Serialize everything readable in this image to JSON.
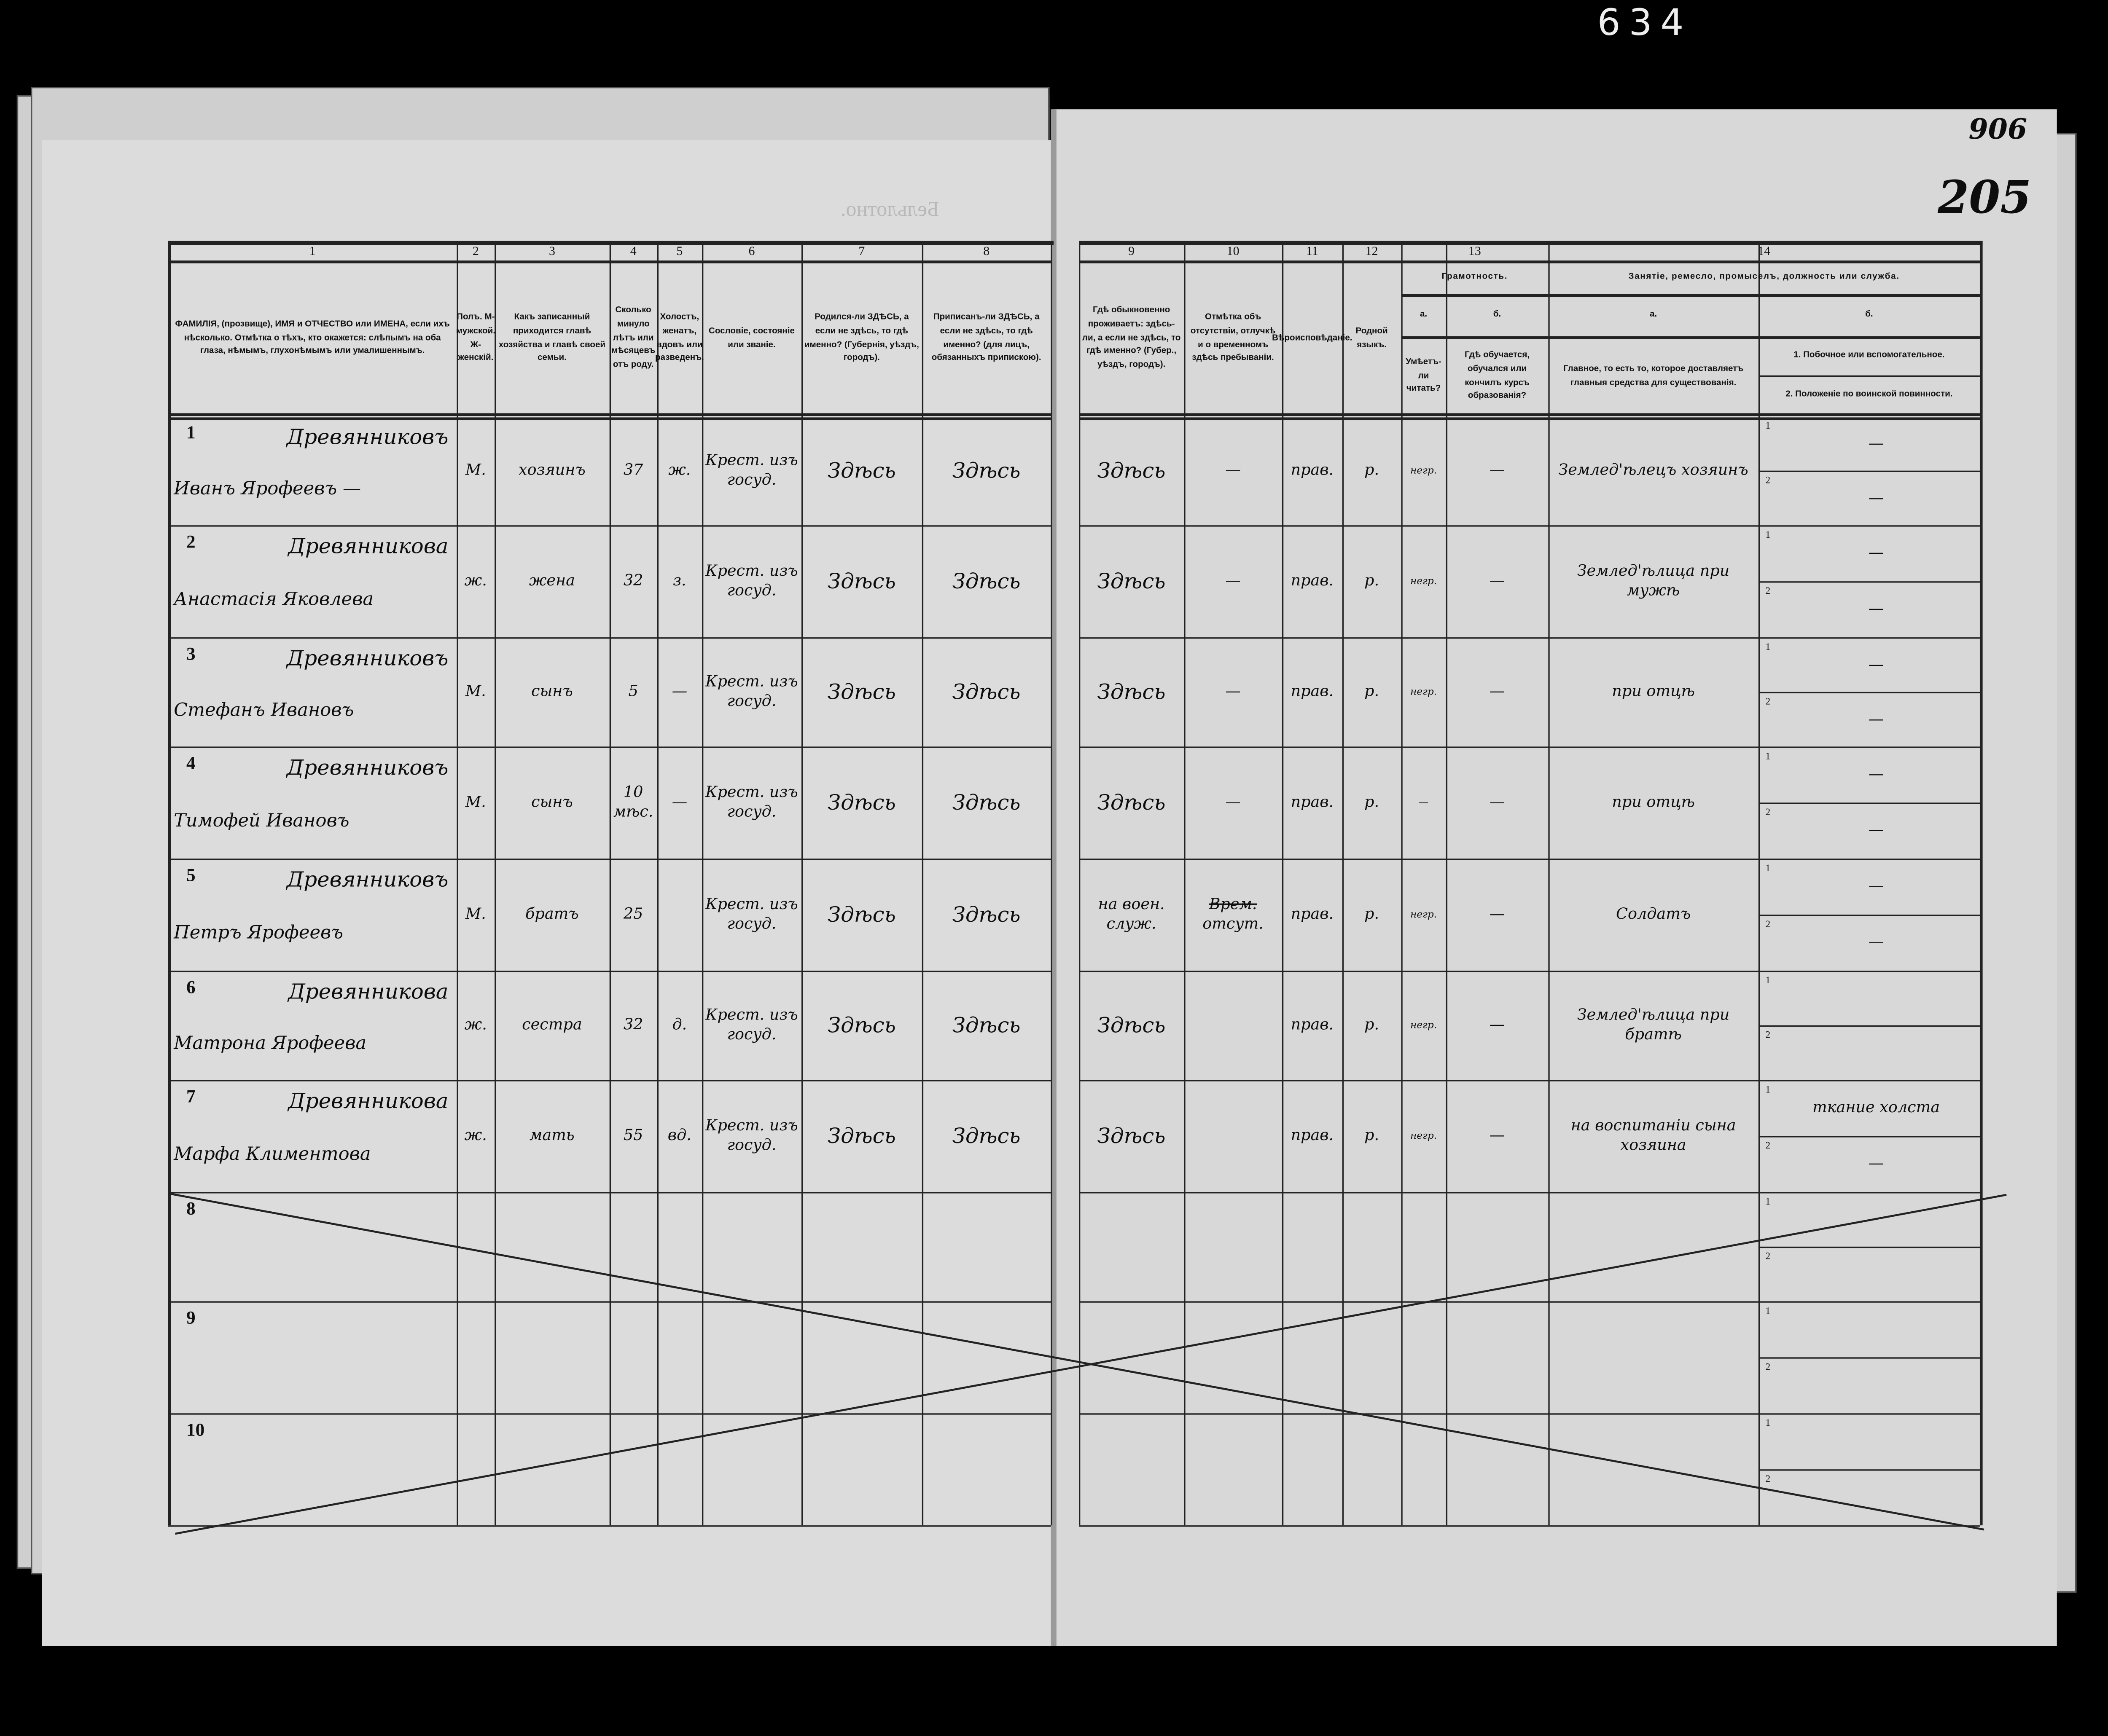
{
  "archive_page_number": "634",
  "sheet_numbers": {
    "stamped": "205",
    "stamped_old": "906"
  },
  "watermark_text": "Бельлотно.",
  "header": {
    "col_numbers": [
      "1",
      "2",
      "3",
      "4",
      "5",
      "6",
      "7",
      "8",
      "9",
      "10",
      "11",
      "12",
      "13",
      "14"
    ],
    "col1": "ФАМИЛІЯ, (прозвище), ИМЯ и ОТЧЕСТВО или ИМЕНА, если ихъ нѣсколько. Отмѣтка о тѣхъ, кто окажется: слѣпымъ на оба глаза, нѣмымъ, глухонѣмымъ или умалишеннымъ.",
    "col2": "Полъ. М-мужской. Ж-женскій.",
    "col3": "Какъ записанный приходится главѣ хозяйства и главѣ своей семьи.",
    "col4": "Сколько минуло лѣтъ или мѣсяцевъ отъ роду.",
    "col5": "Холостъ, женатъ, вдовъ или разведенъ.",
    "col6": "Сословіе, состояніе или званіе.",
    "col7": "Родился-ли ЗДѢСЬ, а если не здѣсь, то гдѣ именно? (Губернія, уѣздъ, городъ).",
    "col8": "Приписанъ-ли ЗДѢСЬ, а если не здѣсь, то гдѣ именно? (для лицъ, обязанныхъ припискою).",
    "col9": "Гдѣ обыкновенно проживаетъ: здѣсь-ли, а если не здѣсь, то гдѣ именно? (Губер., уѣздъ, городъ).",
    "col10": "Отмѣтка объ отсутствіи, отлучкѣ и о временномъ здѣсь пребываніи.",
    "col11": "Вѣроисповѣданіе.",
    "col12": "Родной языкъ.",
    "col13_title": "Грамотность.",
    "col13a_letter": "а.",
    "col13a": "Умѣетъ-ли читать?",
    "col13b_letter": "б.",
    "col13b": "Гдѣ обучается, обучался или кончилъ курсъ образованія?",
    "col14_title": "Занятіе, ремесло, промыселъ, должность или служба.",
    "col14a_letter": "а.",
    "col14a": "Главное, то есть то, которое доставляетъ главныя средства для существованія.",
    "col14b_letter": "б.",
    "col14b_1": "1. Побочное или вспомогательное.",
    "col14b_2": "2. Положеніе по воинской повинности."
  },
  "rows": [
    {
      "n": "1",
      "surname": "Древянниковъ",
      "name": "Иванъ Ярофеевъ —",
      "sex": "М.",
      "relation": "хозяинъ",
      "age": "37",
      "marital": "ж.",
      "estate": "Крест. изъ госуд.",
      "born": "Здѣсь",
      "registered": "Здѣсь",
      "resides": "Здѣсь",
      "absence": "—",
      "religion": "прав.",
      "language": "р.",
      "literate": "негр.",
      "education": "—",
      "occupation": "Землед'ѣлецъ хозяинъ",
      "secondary_1": "—",
      "secondary_2": "—"
    },
    {
      "n": "2",
      "surname": "Древянникова",
      "name": "Анастасія Яковлева",
      "sex": "ж.",
      "relation": "жена",
      "age": "32",
      "marital": "з.",
      "estate": "Крест. изъ госуд.",
      "born": "Здѣсь",
      "registered": "Здѣсь",
      "resides": "Здѣсь",
      "absence": "—",
      "religion": "прав.",
      "language": "р.",
      "literate": "негр.",
      "education": "—",
      "occupation": "Землед'ѣлица при мужѣ",
      "secondary_1": "—",
      "secondary_2": "—"
    },
    {
      "n": "3",
      "surname": "Древянниковъ",
      "name": "Стефанъ Ивановъ",
      "sex": "М.",
      "relation": "сынъ",
      "age": "5",
      "marital": "—",
      "estate": "Крест. изъ госуд.",
      "born": "Здѣсь",
      "registered": "Здѣсь",
      "resides": "Здѣсь",
      "absence": "—",
      "religion": "прав.",
      "language": "р.",
      "literate": "негр.",
      "education": "—",
      "occupation": "при отцѣ",
      "secondary_1": "—",
      "secondary_2": "—"
    },
    {
      "n": "4",
      "surname": "Древянниковъ",
      "name": "Тимофей Ивановъ",
      "sex": "М.",
      "relation": "сынъ",
      "age": "10 мѣс.",
      "marital": "—",
      "estate": "Крест. изъ госуд.",
      "born": "Здѣсь",
      "registered": "Здѣсь",
      "resides": "Здѣсь",
      "absence": "—",
      "religion": "прав.",
      "language": "р.",
      "literate": "—",
      "education": "—",
      "occupation": "при отцѣ",
      "secondary_1": "—",
      "secondary_2": "—"
    },
    {
      "n": "5",
      "surname": "Древянниковъ",
      "name": "Петръ Ярофеевъ",
      "sex": "М.",
      "relation": "братъ",
      "age": "25",
      "marital": "",
      "estate": "Крест. изъ госуд.",
      "born": "Здѣсь",
      "registered": "Здѣсь",
      "resides": "на воен. служ.",
      "absence_struck": "Врем.",
      "absence": "отсут.",
      "religion": "прав.",
      "language": "р.",
      "literate": "негр.",
      "education": "—",
      "occupation": "Солдатъ",
      "secondary_1": "—",
      "secondary_2": "—"
    },
    {
      "n": "6",
      "surname": "Древянникова",
      "name": "Матрона Ярофеева",
      "sex": "ж.",
      "relation": "сестра",
      "age": "32",
      "marital": "д.",
      "estate": "Крест. изъ госуд.",
      "born": "Здѣсь",
      "registered": "Здѣсь",
      "resides": "Здѣсь",
      "absence": "",
      "religion": "прав.",
      "language": "р.",
      "literate": "негр.",
      "education": "—",
      "occupation": "Землед'ѣлица при братѣ",
      "secondary_1": "",
      "secondary_2": ""
    },
    {
      "n": "7",
      "surname": "Древянникова",
      "name": "Марфа Климентова",
      "sex": "ж.",
      "relation": "мать",
      "age": "55",
      "marital": "вд.",
      "estate": "Крест. изъ госуд.",
      "born": "Здѣсь",
      "registered": "Здѣсь",
      "resides": "Здѣсь",
      "absence": "",
      "religion": "прав.",
      "language": "р.",
      "literate": "негр.",
      "education": "—",
      "occupation": "на воспитаніи сына хозяина",
      "secondary_1": "ткание холста",
      "secondary_2": "—"
    },
    {
      "n": "8"
    },
    {
      "n": "9"
    },
    {
      "n": "10"
    }
  ],
  "sub_labels": {
    "one": "1",
    "two": "2"
  },
  "colors": {
    "paper": "#dcdcdc",
    "ink": "#111111",
    "background": "#000000"
  }
}
